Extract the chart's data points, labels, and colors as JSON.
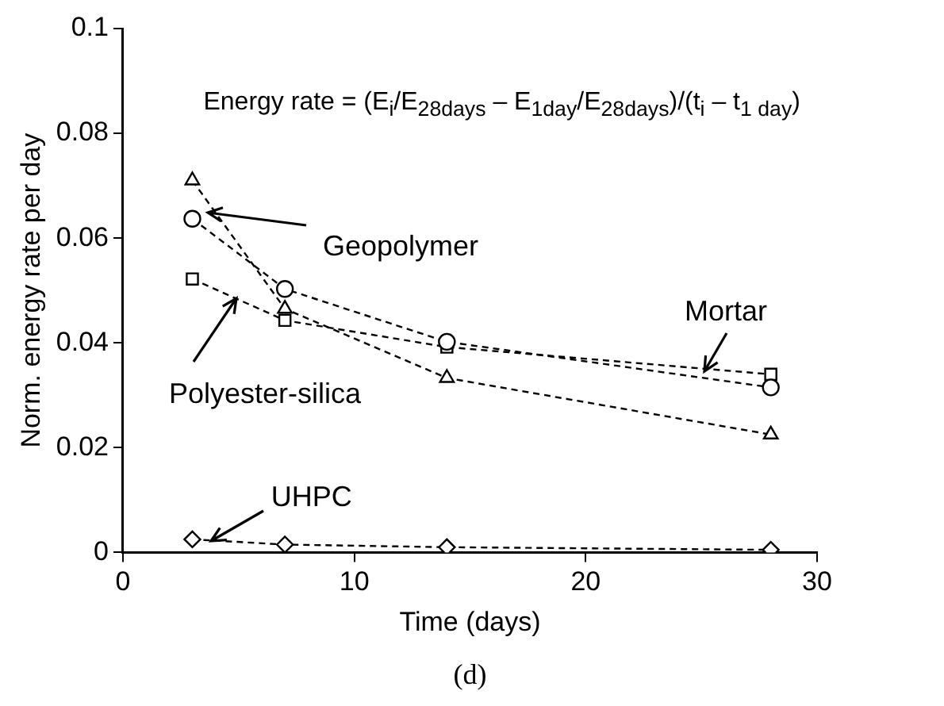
{
  "chart_data": {
    "type": "line",
    "xlabel": "Time (days)",
    "ylabel": "Norm. energy rate per day",
    "x": [
      3,
      7,
      14,
      28
    ],
    "xlim": [
      0,
      30
    ],
    "xticks": [
      0,
      10,
      20,
      30
    ],
    "ylim": [
      0,
      0.1
    ],
    "yticks": [
      0,
      0.02,
      0.04,
      0.06,
      0.08,
      0.1
    ],
    "grid": false,
    "legend": false,
    "line_style": "dashed",
    "series": [
      {
        "color": "#000000",
        "marker": "triangle",
        "values": [
          0.071,
          0.0465,
          0.0333,
          0.0225
        ]
      },
      {
        "color": "#000000",
        "marker": "circle",
        "values": [
          0.0637,
          0.0503,
          0.0402,
          0.0315
        ]
      },
      {
        "color": "#000000",
        "marker": "square",
        "values": [
          0.0522,
          0.0443,
          0.0392,
          0.034
        ]
      },
      {
        "color": "#000000",
        "marker": "diamond",
        "values": [
          0.0025,
          0.0015,
          0.001,
          0.0005
        ]
      }
    ],
    "annotations": [
      "Energy rate = (E$_{i}$/E$_{28days}$ – E$_{1day}$/E$_{28days}$)/(t$_{i}$ – t$_{1 day}$)",
      {
        "text": "Geopolymer",
        "x": 3.7,
        "y": 0.065
      },
      {
        "text": "Mortar",
        "x": 25.1,
        "y": 0.0345
      },
      {
        "text": "Polyester-silica",
        "x": 4.9,
        "y": 0.0485
      },
      {
        "text": "UHPC",
        "x": 3.8,
        "y": 0.0023
      },
      "(d)"
    ]
  }
}
